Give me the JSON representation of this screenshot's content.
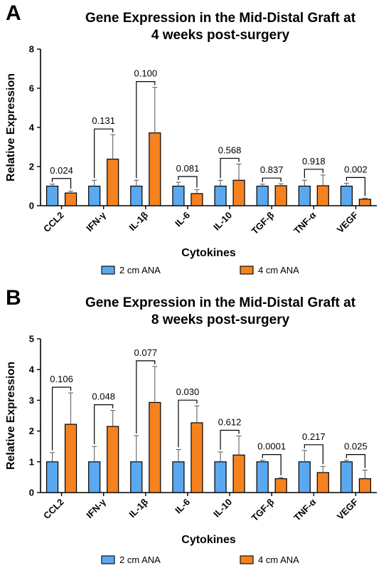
{
  "chart_data": [
    {
      "panel_letter": "A",
      "type": "bar",
      "title": "Gene Expression in the Mid-Distal Graft at 4 weeks post-surgery",
      "title_lines": [
        "Gene Expression in the Mid-Distal Graft at",
        "4 weeks post-surgery"
      ],
      "xlabel": "Cytokines",
      "ylabel": "Relative Expression",
      "ylim": [
        0,
        8
      ],
      "yticks": [
        "0",
        "2",
        "4",
        "6",
        "8"
      ],
      "categories": [
        "CCL2",
        "IFN-γ",
        "IL-1β",
        "IL-6",
        "IL-10",
        "TGF-β",
        "TNF-α",
        "VEGF"
      ],
      "series": [
        {
          "name": "2 cm ANA",
          "color": "#5aa8f0",
          "values": [
            1.0,
            1.0,
            1.0,
            1.0,
            1.0,
            1.0,
            1.0,
            1.0
          ],
          "error": [
            0.1,
            0.3,
            0.3,
            0.2,
            0.3,
            0.1,
            0.3,
            0.15
          ]
        },
        {
          "name": "4 cm ANA",
          "color": "#f5821f",
          "values": [
            0.65,
            2.38,
            3.72,
            0.62,
            1.3,
            1.02,
            1.02,
            0.33
          ],
          "error": [
            0.1,
            1.25,
            2.33,
            0.2,
            0.83,
            0.1,
            0.55,
            0.05
          ]
        }
      ],
      "p_values": [
        "0.024",
        "0.131",
        "0.100",
        "0.081",
        "0.568",
        "0.837",
        "0.918",
        "0.002"
      ],
      "legend_position": "bottom"
    },
    {
      "panel_letter": "B",
      "type": "bar",
      "title": "Gene Expression in the Mid-Distal Graft at 8 weeks post-surgery",
      "title_lines": [
        "Gene Expression in the Mid-Distal Graft at",
        "8 weeks post-surgery"
      ],
      "xlabel": "Cytokines",
      "ylabel": "Relative Expression",
      "ylim": [
        0,
        5
      ],
      "yticks": [
        "0",
        "1",
        "2",
        "3",
        "4",
        "5"
      ],
      "categories": [
        "CCL2",
        "IFN-γ",
        "IL-1β",
        "IL-6",
        "IL-10",
        "TGF-β",
        "TNF-α",
        "VEGF"
      ],
      "series": [
        {
          "name": "2 cm ANA",
          "color": "#5aa8f0",
          "values": [
            1.0,
            1.0,
            1.0,
            1.0,
            1.0,
            1.0,
            1.0,
            1.0
          ],
          "error": [
            0.3,
            0.5,
            0.85,
            0.4,
            0.32,
            0.05,
            0.37,
            0.05
          ]
        },
        {
          "name": "4 cm ANA",
          "color": "#f5821f",
          "values": [
            2.22,
            2.15,
            2.93,
            2.27,
            1.22,
            0.45,
            0.65,
            0.45
          ],
          "error": [
            1.02,
            0.52,
            1.17,
            0.55,
            0.62,
            0.04,
            0.2,
            0.28
          ]
        }
      ],
      "p_values": [
        "0.106",
        "0.048",
        "0.077",
        "0.030",
        "0.612",
        "0.0001",
        "0.217",
        "0.025"
      ],
      "legend_position": "bottom"
    }
  ]
}
